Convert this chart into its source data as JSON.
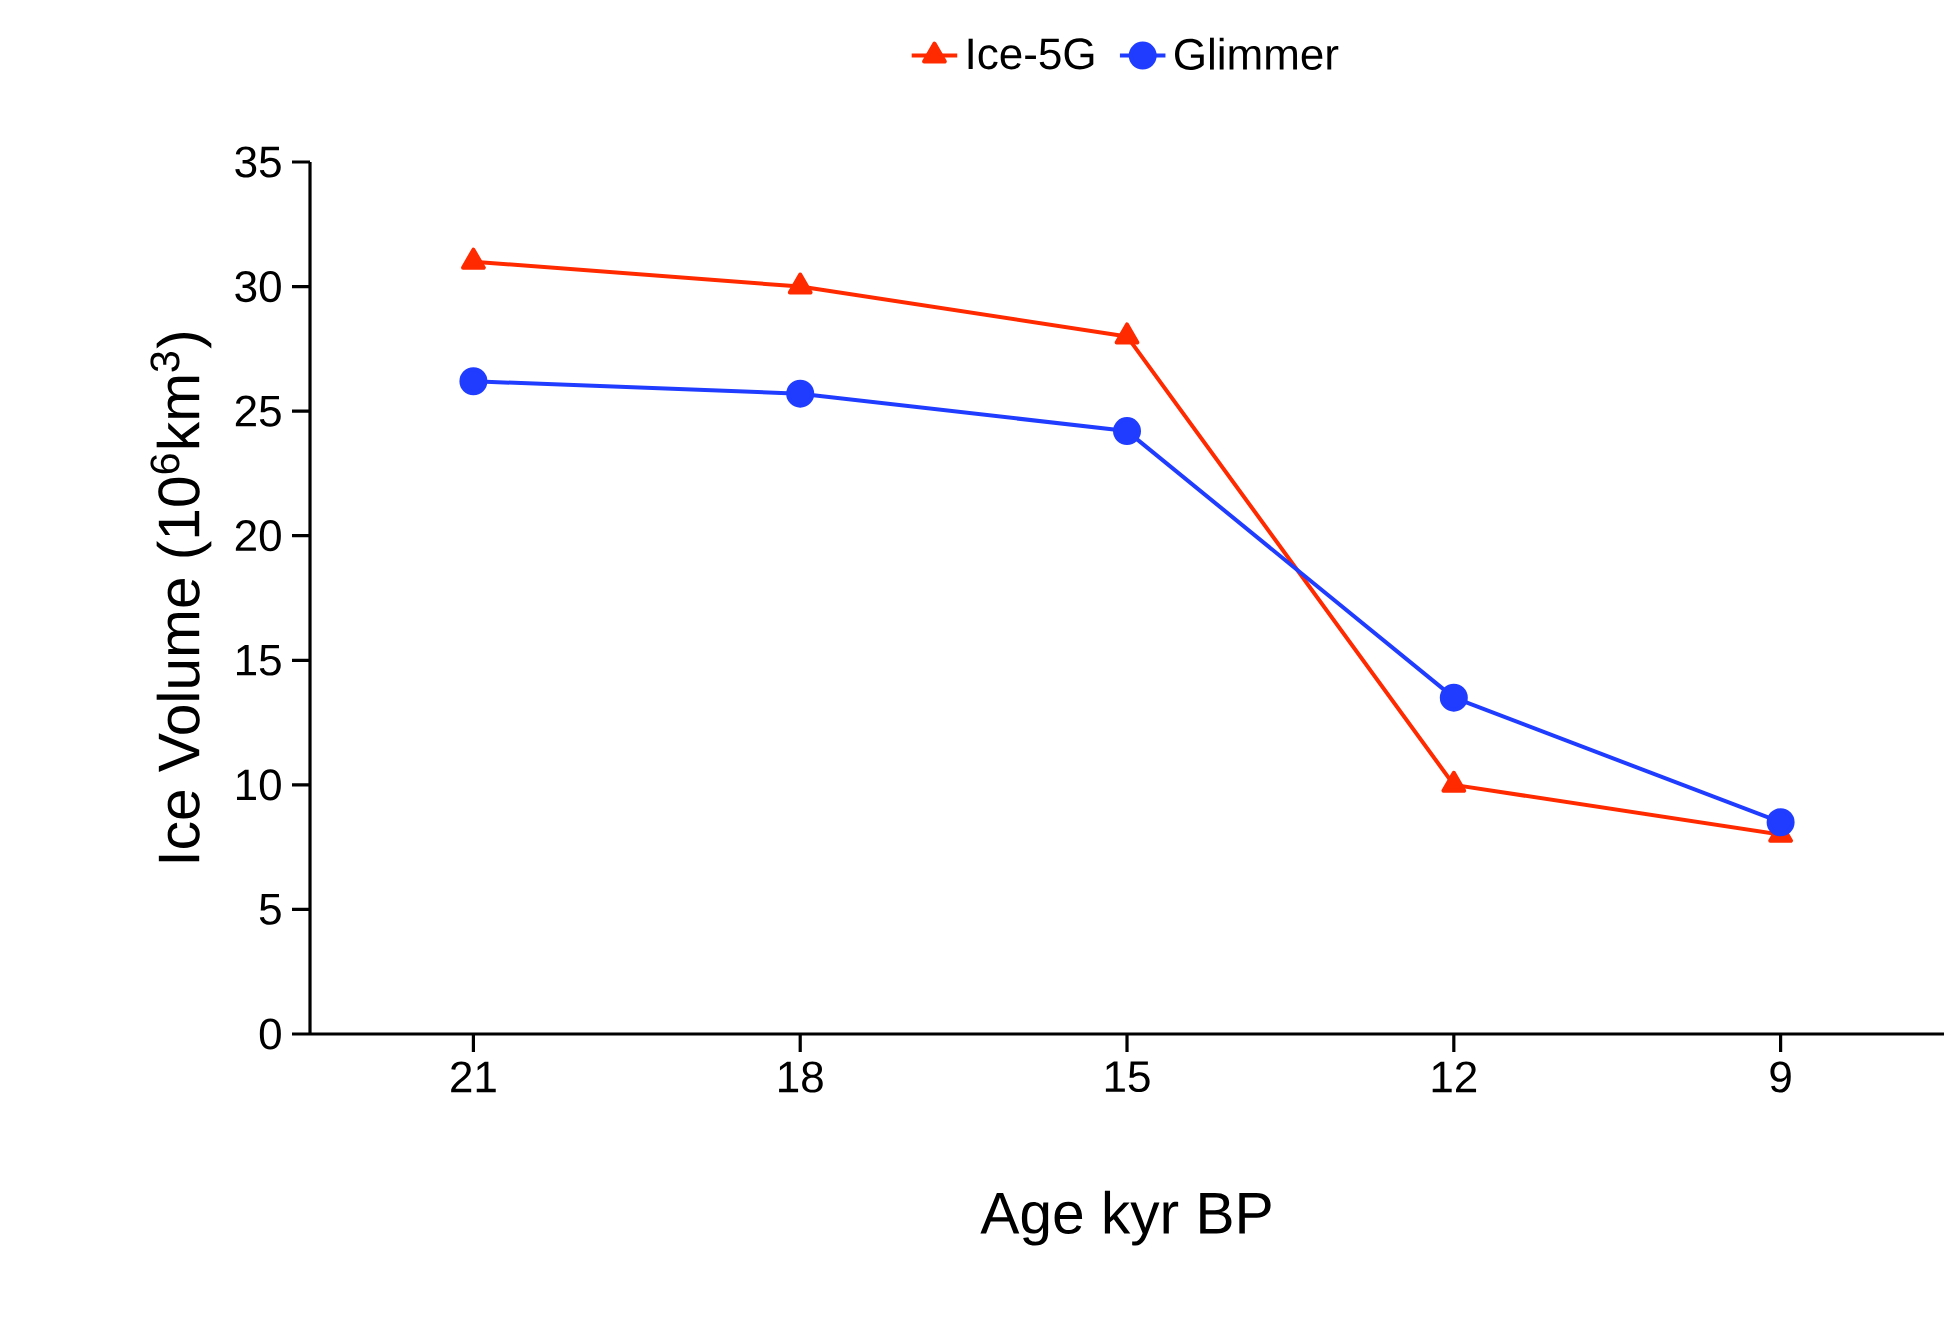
{
  "chart_data": {
    "type": "line",
    "xlabel": "Age kyr BP",
    "ylabel": "Ice Volume (10$^{6}$km$^{3}$)",
    "categories": [
      "21",
      "18",
      "15",
      "12",
      "9"
    ],
    "series": [
      {
        "name": "Ice-5G",
        "color": "#ff2a00",
        "marker": "triangle",
        "values": [
          31,
          30,
          28,
          10,
          8
        ]
      },
      {
        "name": "Glimmer",
        "color": "#1f3cff",
        "marker": "circle",
        "values": [
          26.2,
          25.7,
          24.2,
          13.5,
          8.5
        ]
      }
    ],
    "ylim": [
      0,
      35
    ],
    "yticks": [
      0,
      5,
      10,
      15,
      20,
      25,
      30,
      35
    ],
    "legend": "top",
    "grid": false
  }
}
